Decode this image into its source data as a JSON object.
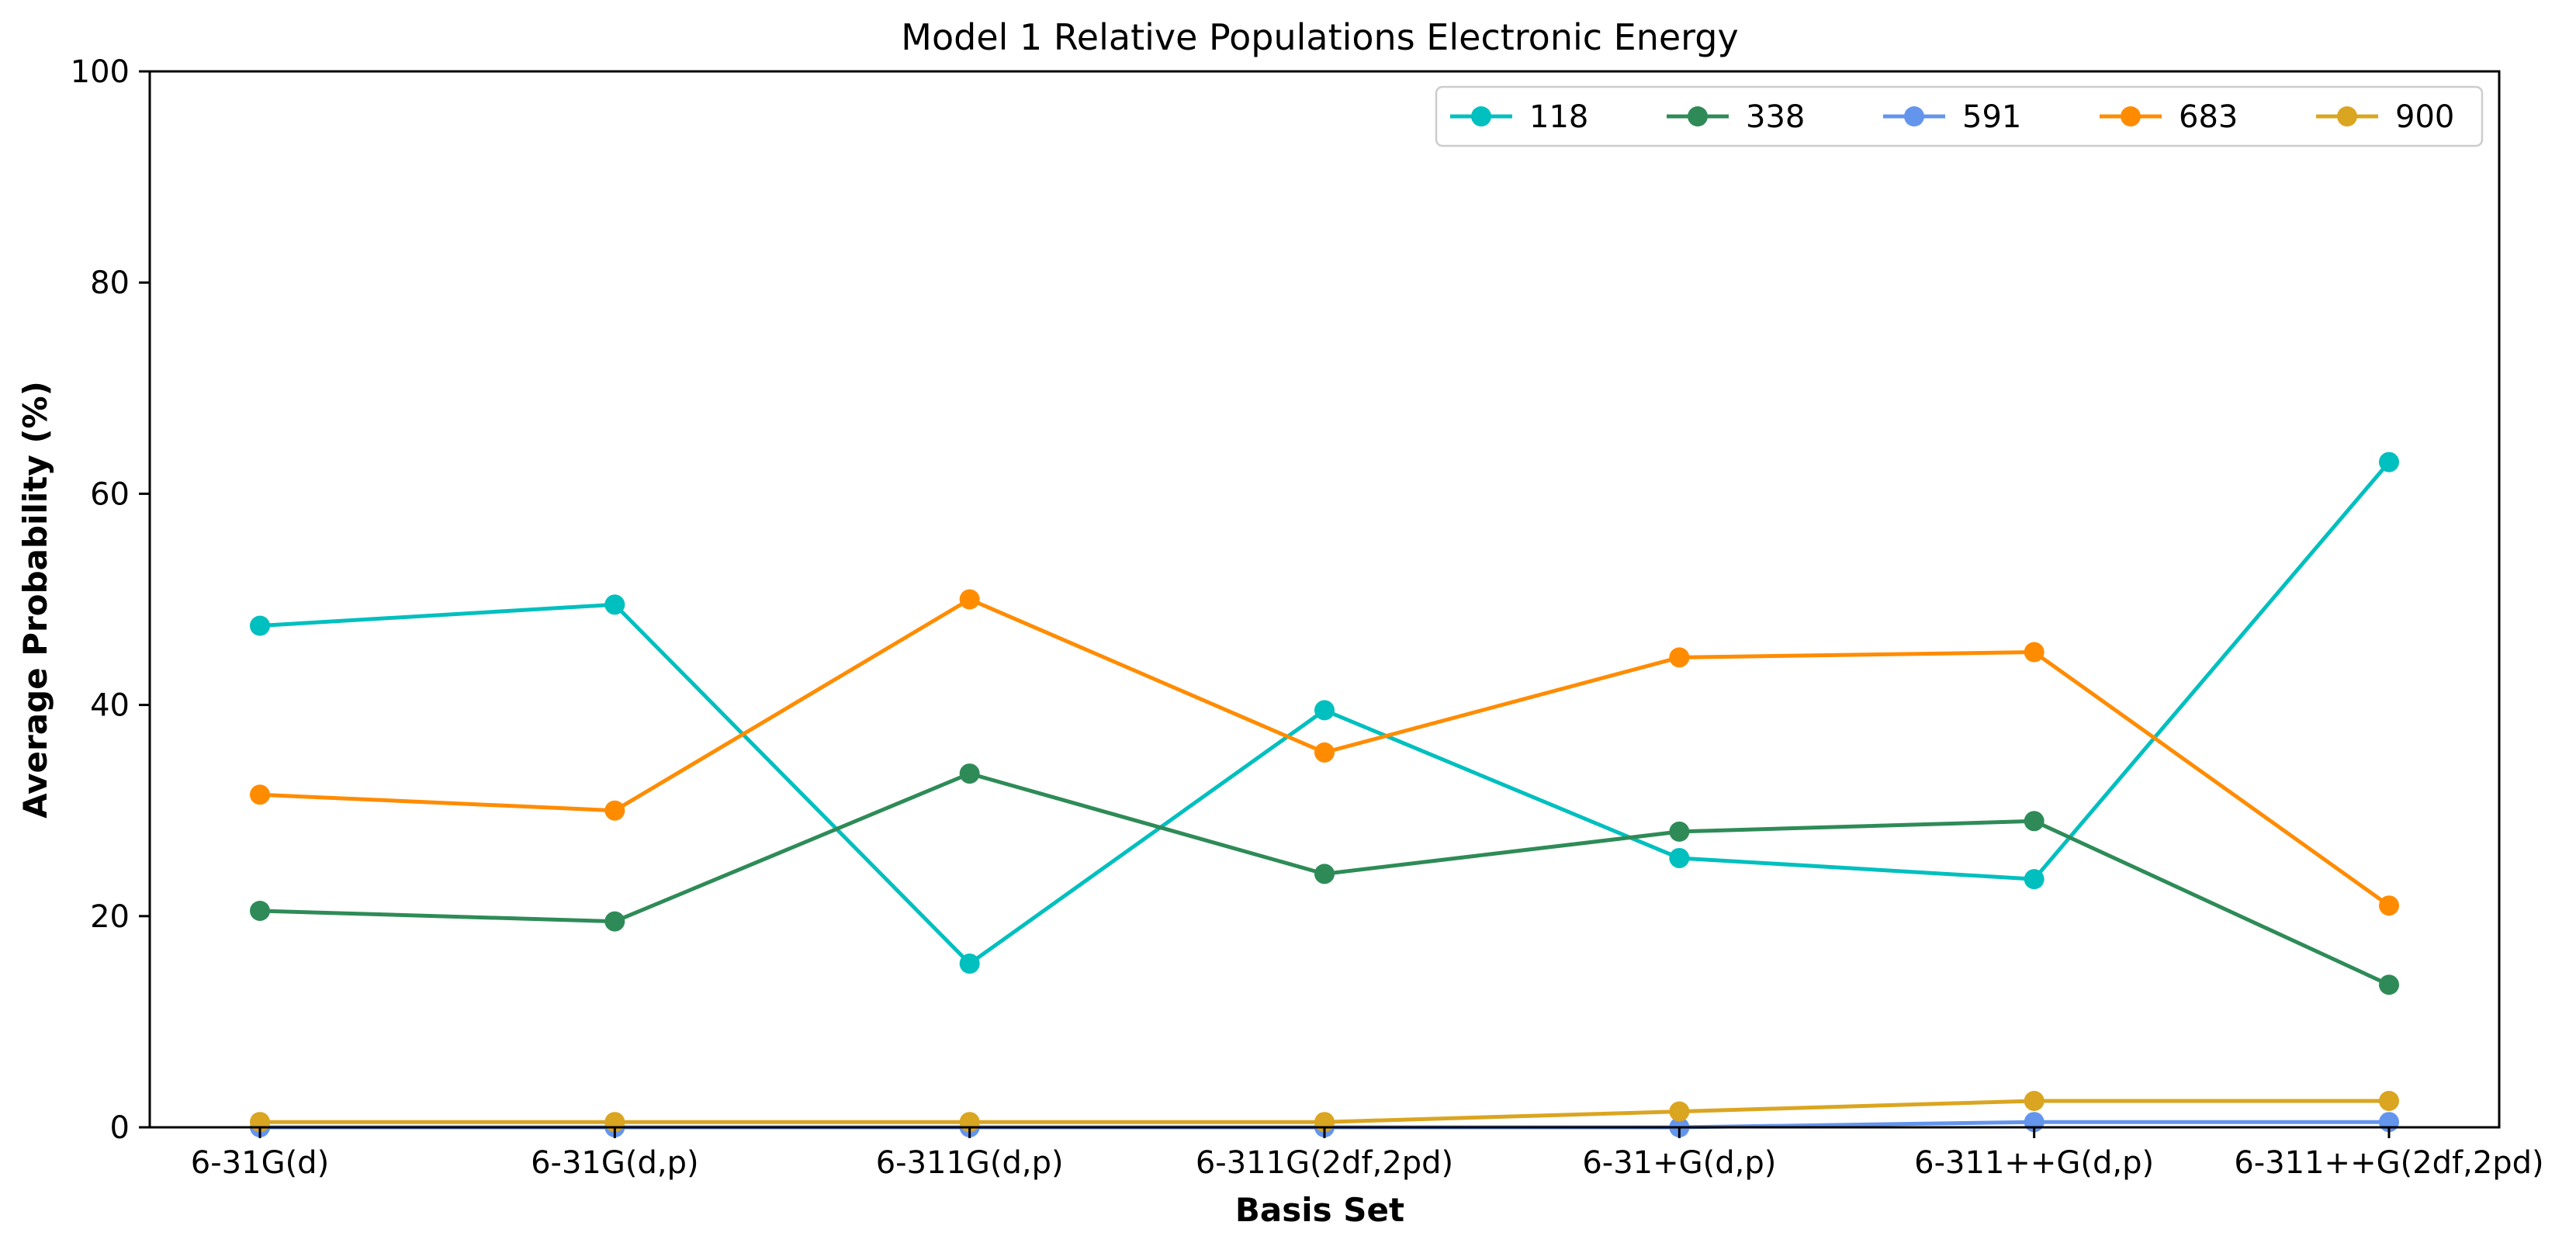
{
  "chart_data": {
    "type": "line",
    "title": "Model 1 Relative Populations Electronic Energy",
    "xlabel": "Basis Set",
    "ylabel": "Average Probability (%)",
    "categories": [
      "6-31G(d)",
      "6-31G(d,p)",
      "6-311G(d,p)",
      "6-311G(2df,2pd)",
      "6-31+G(d,p)",
      "6-311++G(d,p)",
      "6-311++G(2df,2pd)"
    ],
    "ylim": [
      0,
      100
    ],
    "yticks": [
      0,
      20,
      40,
      60,
      80,
      100
    ],
    "grid": false,
    "legend_position": "top-right",
    "series": [
      {
        "name": "118",
        "color": "#00BFBF",
        "values": [
          47.5,
          49.5,
          15.5,
          39.5,
          25.5,
          23.5,
          63.0
        ]
      },
      {
        "name": "338",
        "color": "#2E8B57",
        "values": [
          20.5,
          19.5,
          33.5,
          24.0,
          28.0,
          29.0,
          13.5
        ]
      },
      {
        "name": "591",
        "color": "#6495ED",
        "values": [
          0.0,
          0.0,
          0.0,
          0.0,
          0.0,
          0.5,
          0.5
        ]
      },
      {
        "name": "683",
        "color": "#FF8C00",
        "values": [
          31.5,
          30.0,
          50.0,
          35.5,
          44.5,
          45.0,
          21.0
        ]
      },
      {
        "name": "900",
        "color": "#DAA520",
        "values": [
          0.5,
          0.5,
          0.5,
          0.5,
          1.5,
          2.5,
          2.5
        ]
      }
    ]
  }
}
